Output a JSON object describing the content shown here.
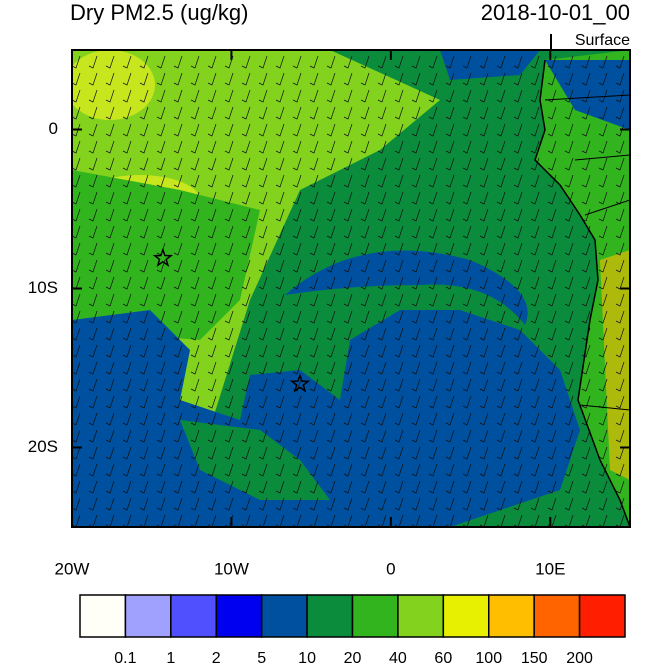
{
  "map": {
    "title": "Dry PM2.5 (ug/kg)",
    "time": "2018-10-01_00",
    "level": "Surface",
    "lonlim": [
      -20,
      15
    ],
    "latlim": [
      -25,
      5
    ],
    "lon_ticks": [
      {
        "value": -20,
        "label": "20W"
      },
      {
        "value": -10,
        "label": "10W"
      },
      0,
      {
        "value": 10,
        "label": "10E"
      }
    ],
    "lat_ticks": [
      0,
      {
        "value": -10,
        "label": "10S"
      },
      {
        "value": -20,
        "label": "20S"
      }
    ],
    "markers": [
      {
        "lon": -14.3,
        "lat": -8.1
      },
      {
        "lon": -5.7,
        "lat": -16
      }
    ],
    "colorbar": {
      "levels": [
        0.1,
        1,
        2,
        5,
        10,
        20,
        40,
        60,
        100,
        150,
        200
      ],
      "colors": [
        "#fffff8",
        "#a0a0ff",
        "#5050ff",
        "#0000f0",
        "#0050a0",
        "#0a8c3c",
        "#32b41e",
        "#82d21e",
        "#e6f000",
        "#ffbe00",
        "#ff6400",
        "#ff1e00"
      ]
    }
  }
}
